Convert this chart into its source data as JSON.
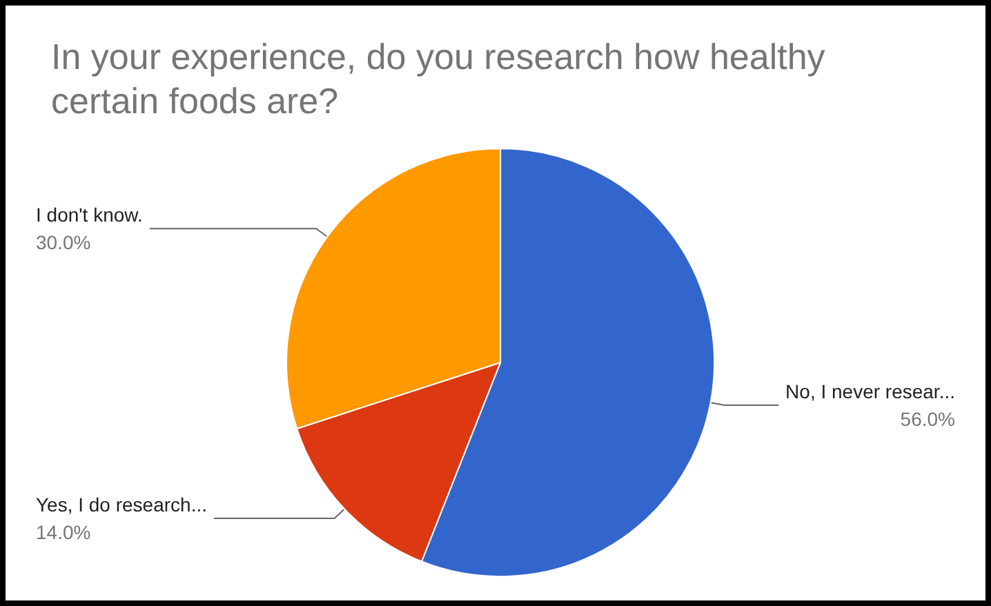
{
  "chart_data": {
    "type": "pie",
    "title": "In your experience, do you research how healthy certain foods are?",
    "categories": [
      "No, I never resear...",
      "Yes, I do research...",
      "I don't know."
    ],
    "values": [
      56,
      14,
      30
    ],
    "colors": [
      "#3366cc",
      "#dc3912",
      "#ff9900"
    ],
    "value_labels": [
      "56.0%",
      "14.0%",
      "30.0%"
    ],
    "legend": false
  }
}
